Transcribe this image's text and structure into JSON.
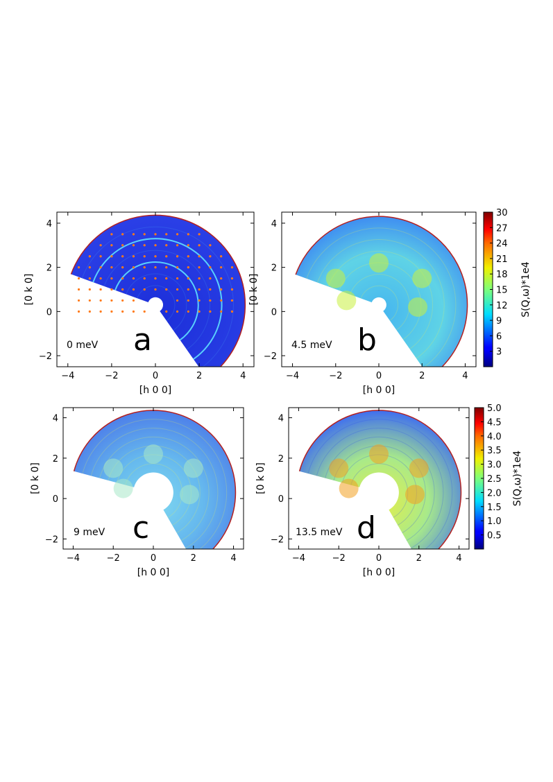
{
  "chart_data": [
    {
      "type": "heatmap",
      "panel": "a",
      "energy": "0 meV",
      "xlabel": "[h 0 0]",
      "ylabel": "[0 k 0]",
      "xlim": [
        -4.5,
        4.5
      ],
      "ylim": [
        -2.5,
        4.5
      ],
      "xticks": [
        "−4",
        "−2",
        "0",
        "2",
        "4"
      ],
      "yticks": [
        "−2",
        "0",
        "2",
        "4"
      ],
      "xtick_values": [
        -4,
        -2,
        0,
        2,
        4
      ],
      "ytick_values": [
        -2,
        0,
        2,
        4
      ],
      "colorscale_range": [
        0,
        30
      ]
    },
    {
      "type": "heatmap",
      "panel": "b",
      "energy": "4.5 meV",
      "xlabel": "[h 0 0]",
      "ylabel": "[0 k 0]",
      "xlim": [
        -4.5,
        4.5
      ],
      "ylim": [
        -2.5,
        4.5
      ],
      "xticks": [
        "−4",
        "−2",
        "0",
        "2",
        "4"
      ],
      "yticks": [
        "−2",
        "0",
        "2",
        "4"
      ],
      "xtick_values": [
        -4,
        -2,
        0,
        2,
        4
      ],
      "ytick_values": [
        -2,
        0,
        2,
        4
      ],
      "colorscale_range": [
        0,
        30
      ],
      "colorbar": {
        "label": "S(Q,ω)*1e4",
        "ticks": [
          "3",
          "6",
          "9",
          "12",
          "15",
          "18",
          "21",
          "24",
          "27",
          "30"
        ],
        "tick_values": [
          3,
          6,
          9,
          12,
          15,
          18,
          21,
          24,
          27,
          30
        ],
        "range": [
          0,
          30
        ]
      }
    },
    {
      "type": "heatmap",
      "panel": "c",
      "energy": "9 meV",
      "xlabel": "[h 0 0]",
      "ylabel": "[0 k 0]",
      "xlim": [
        -4.5,
        4.5
      ],
      "ylim": [
        -2.5,
        4.5
      ],
      "xticks": [
        "−4",
        "−2",
        "0",
        "2",
        "4"
      ],
      "yticks": [
        "−2",
        "0",
        "2",
        "4"
      ],
      "xtick_values": [
        -4,
        -2,
        0,
        2,
        4
      ],
      "ytick_values": [
        -2,
        0,
        2,
        4
      ],
      "colorscale_range": [
        0,
        5
      ]
    },
    {
      "type": "heatmap",
      "panel": "d",
      "energy": "13.5 meV",
      "xlabel": "[h 0 0]",
      "ylabel": "[0 k 0]",
      "xlim": [
        -4.5,
        4.5
      ],
      "ylim": [
        -2.5,
        4.5
      ],
      "xticks": [
        "−4",
        "−2",
        "0",
        "2",
        "4"
      ],
      "yticks": [
        "−2",
        "0",
        "2",
        "4"
      ],
      "xtick_values": [
        -4,
        -2,
        0,
        2,
        4
      ],
      "ytick_values": [
        -2,
        0,
        2,
        4
      ],
      "colorscale_range": [
        0,
        5
      ],
      "colorbar": {
        "label": "S(Q,ω)*1e4",
        "ticks": [
          "0.5",
          "1.0",
          "1.5",
          "2.0",
          "2.5",
          "3.0",
          "3.5",
          "4.0",
          "4.5",
          "5.0"
        ],
        "tick_values": [
          0.5,
          1.0,
          1.5,
          2.0,
          2.5,
          3.0,
          3.5,
          4.0,
          4.5,
          5.0
        ],
        "range": [
          0,
          5
        ]
      }
    }
  ],
  "colors": {
    "low": "#00007f",
    "mid_low": "#0064ff",
    "mid": "#7dff7a",
    "mid_high": "#ffc800",
    "high": "#7f0000"
  }
}
